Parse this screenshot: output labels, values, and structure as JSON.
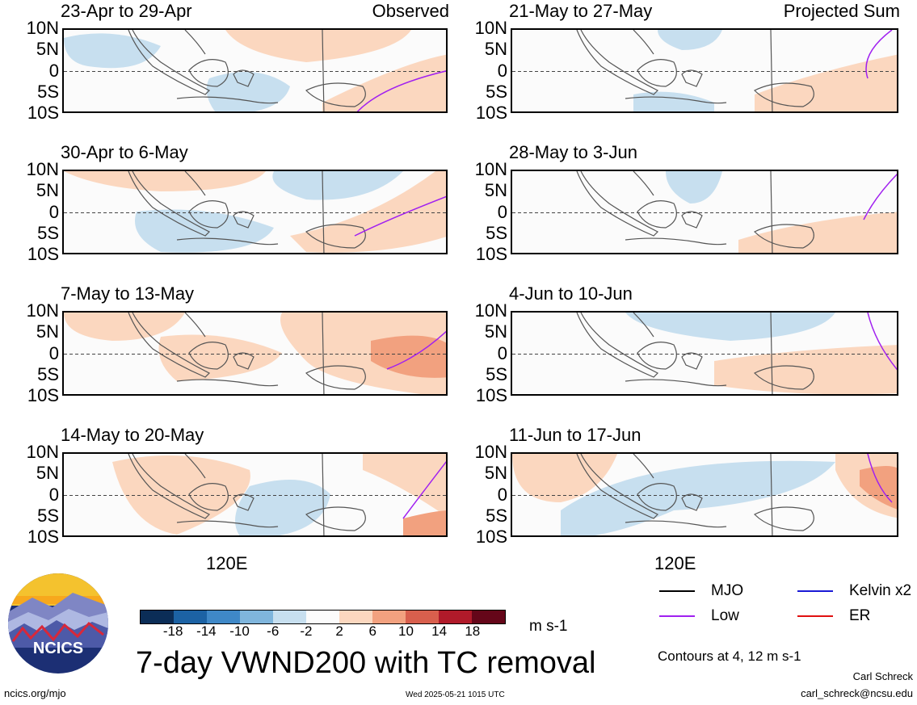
{
  "panels": [
    {
      "title": "23-Apr to 29-Apr",
      "label": "Observed"
    },
    {
      "title": "30-Apr to 6-May",
      "label": ""
    },
    {
      "title": "7-May to 13-May",
      "label": ""
    },
    {
      "title": "14-May to 20-May",
      "label": ""
    },
    {
      "title": "21-May to 27-May",
      "label": "Projected Sum"
    },
    {
      "title": "28-May to 3-Jun",
      "label": ""
    },
    {
      "title": "4-Jun to 10-Jun",
      "label": ""
    },
    {
      "title": "11-Jun to 17-Jun",
      "label": ""
    }
  ],
  "lat_labels": [
    "10N",
    "5N",
    "0",
    "5S",
    "10S"
  ],
  "lon_label": "120E",
  "colorbar": {
    "ticks": [
      "-18",
      "-14",
      "-10",
      "-6",
      "-2",
      "2",
      "6",
      "10",
      "14",
      "18"
    ],
    "colors": [
      "#0b2d57",
      "#1c62a4",
      "#3f88c7",
      "#7fb5dc",
      "#c7dfef",
      "#fbfbfb",
      "#fbd7bf",
      "#f2a17f",
      "#d85f4d",
      "#b01a2a",
      "#650619"
    ],
    "units": "m s-1"
  },
  "title": "7-day VWND200 with TC removal",
  "legend": [
    {
      "label": "MJO",
      "color": "#000000"
    },
    {
      "label": "Kelvin x2",
      "color": "#1a1ad6"
    },
    {
      "label": "Low",
      "color": "#a020f0"
    },
    {
      "label": "ER",
      "color": "#e01010"
    }
  ],
  "contours_note": "Contours at 4, 12 m s-1",
  "author": "Carl Schreck",
  "email": "carl_schreck@ncsu.edu",
  "url": "ncics.org/mjo",
  "timestamp": "Wed 2025-05-21 1015 UTC",
  "logo_text": "NCICS"
}
